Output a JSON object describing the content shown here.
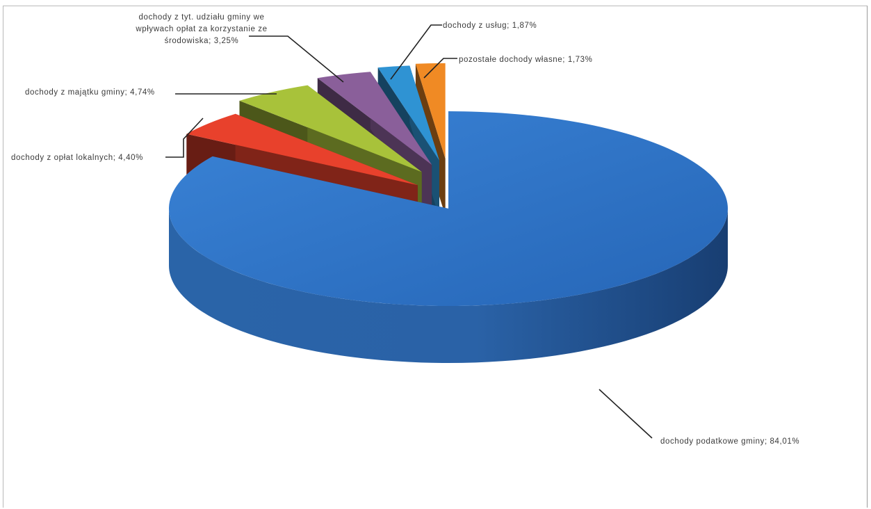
{
  "chart_data": {
    "type": "pie",
    "style": "3d-exploded",
    "slices": [
      {
        "label": "dochody podatkowe gminy; 84,01%",
        "name": "dochody podatkowe gminy",
        "value": 84.01,
        "color": "#2e75c9"
      },
      {
        "label": "dochody z opłat lokalnych; 4,40%",
        "name": "dochody z opłat lokalnych",
        "value": 4.4,
        "color": "#e8412c"
      },
      {
        "label": "dochody z majątku gminy; 4,74%",
        "name": "dochody z majątku gminy",
        "value": 4.74,
        "color": "#a8c23a"
      },
      {
        "label_lines": [
          "dochody z tyt. udziału gminy we",
          "wpływach opłat za korzystanie ze",
          "środowiska; 3,25%"
        ],
        "name": "dochody z tyt. udziału gminy we wpływach opłat za korzystanie ze środowiska",
        "value": 3.25,
        "color": "#8a5f9a"
      },
      {
        "label": "dochody z usług; 1,87%",
        "name": "dochody z usług",
        "value": 1.87,
        "color": "#2f93d3"
      },
      {
        "label": "pozostałe dochody własne; 1,73%",
        "name": "pozostałe dochody własne",
        "value": 1.73,
        "color": "#f08a24"
      }
    ],
    "legend": "none",
    "data_labels": "outside with leader lines"
  }
}
